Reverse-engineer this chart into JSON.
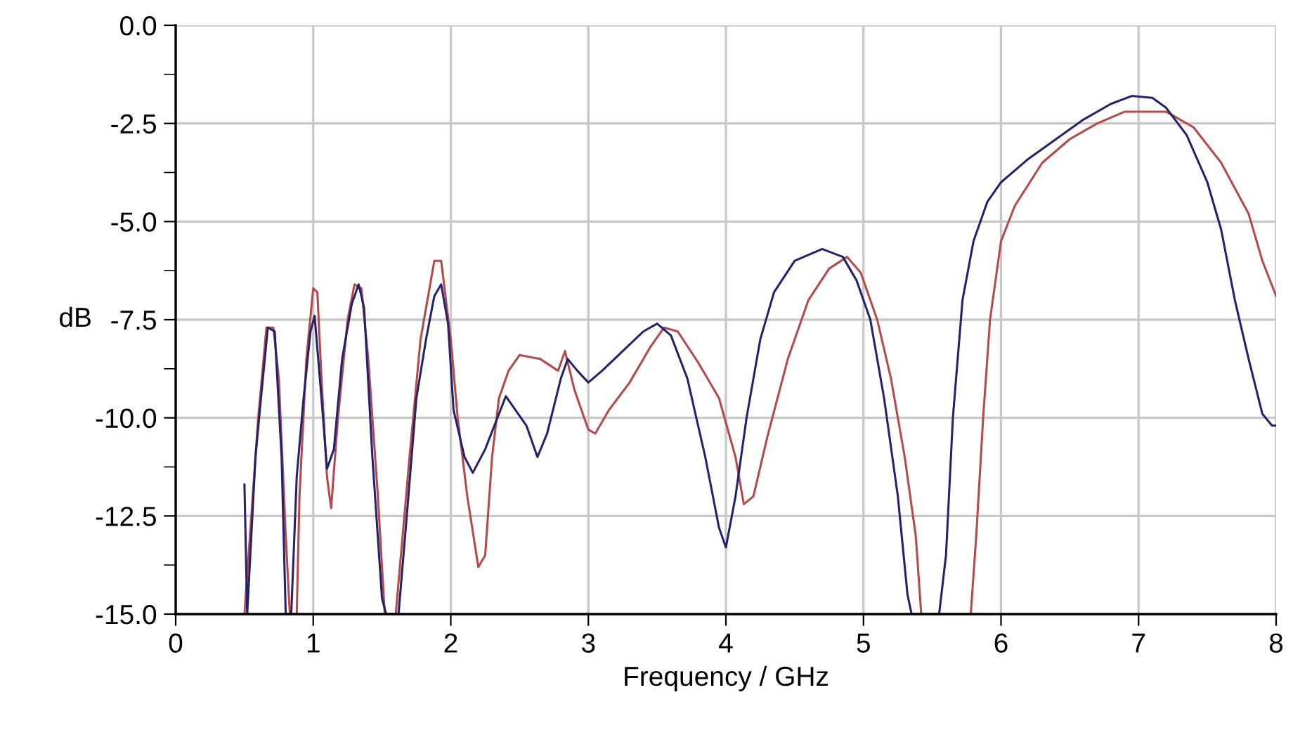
{
  "chart_data": {
    "type": "line",
    "xlabel": "Frequency / GHz",
    "ylabel": "dB",
    "xlim": [
      0,
      8
    ],
    "xticks": [
      0,
      1,
      2,
      3,
      4,
      5,
      6,
      7,
      8
    ],
    "ylim": [
      -15,
      0
    ],
    "yticks": [
      {
        "value": -15,
        "label": "-15.0"
      },
      {
        "value": -13.75,
        "label": null
      },
      {
        "value": -12.5,
        "label": "-12.5"
      },
      {
        "value": -11.25,
        "label": null
      },
      {
        "value": -10,
        "label": "-10.0"
      },
      {
        "value": -8.75,
        "label": null
      },
      {
        "value": -7.5,
        "label": "-7.5"
      },
      {
        "value": -6.25,
        "label": null
      },
      {
        "value": -5,
        "label": "-5.0"
      },
      {
        "value": -3.75,
        "label": null
      },
      {
        "value": -2.5,
        "label": "-2.5"
      },
      {
        "value": -1.25,
        "label": null
      },
      {
        "value": 0,
        "label": "0.0"
      }
    ],
    "grid": true,
    "legend": false,
    "marker": "none",
    "line_style": "solid",
    "series": [
      {
        "color": "#b54a4a",
        "x": [
          0.5,
          0.55,
          0.6,
          0.66,
          0.71,
          0.75,
          0.8,
          0.83,
          0.88,
          0.9,
          0.95,
          1.0,
          1.03,
          1.06,
          1.1,
          1.13,
          1.18,
          1.25,
          1.3,
          1.35,
          1.4,
          1.47,
          1.52,
          1.6,
          1.7,
          1.78,
          1.88,
          1.93,
          2.0,
          2.05,
          2.12,
          2.2,
          2.25,
          2.3,
          2.35,
          2.42,
          2.5,
          2.65,
          2.78,
          2.83,
          2.9,
          3.0,
          3.05,
          3.15,
          3.3,
          3.45,
          3.55,
          3.65,
          3.8,
          3.95,
          4.07,
          4.13,
          4.2,
          4.3,
          4.45,
          4.6,
          4.75,
          4.88,
          4.98,
          5.1,
          5.2,
          5.3,
          5.38,
          5.42,
          5.78,
          5.82,
          5.87,
          5.92,
          6.0,
          6.1,
          6.3,
          6.5,
          6.7,
          6.9,
          7.2,
          7.4,
          7.6,
          7.8,
          7.9,
          8.0
        ],
        "values": [
          -15,
          -12.5,
          -10,
          -7.7,
          -7.7,
          -9,
          -13,
          -15,
          -15,
          -12,
          -8.5,
          -6.7,
          -6.8,
          -9,
          -11.5,
          -12.3,
          -10,
          -7.5,
          -6.6,
          -6.7,
          -8.5,
          -12,
          -15,
          -15,
          -11,
          -8,
          -6.0,
          -6.0,
          -8,
          -10,
          -12,
          -13.8,
          -13.5,
          -11,
          -9.5,
          -8.8,
          -8.4,
          -8.5,
          -8.8,
          -8.3,
          -9.3,
          -10.3,
          -10.4,
          -9.8,
          -9.1,
          -8.2,
          -7.7,
          -7.8,
          -8.6,
          -9.5,
          -11,
          -12.2,
          -12,
          -10.5,
          -8.5,
          -7.0,
          -6.2,
          -5.9,
          -6.3,
          -7.5,
          -9,
          -11,
          -13,
          -15,
          -15,
          -13,
          -10,
          -7.5,
          -5.5,
          -4.6,
          -3.5,
          -2.9,
          -2.5,
          -2.2,
          -2.2,
          -2.6,
          -3.5,
          -4.8,
          -6.0,
          -6.9
        ]
      },
      {
        "color": "#22226e",
        "x": [
          0.5,
          0.52,
          0.58,
          0.62,
          0.67,
          0.72,
          0.77,
          0.8,
          0.84,
          0.88,
          0.93,
          0.98,
          1.01,
          1.06,
          1.1,
          1.15,
          1.21,
          1.28,
          1.33,
          1.37,
          1.43,
          1.5,
          1.53,
          1.62,
          1.68,
          1.75,
          1.82,
          1.88,
          1.93,
          1.98,
          2.02,
          2.1,
          2.16,
          2.25,
          2.4,
          2.55,
          2.63,
          2.7,
          2.8,
          2.85,
          2.92,
          3.0,
          3.1,
          3.25,
          3.4,
          3.5,
          3.6,
          3.72,
          3.85,
          3.95,
          4.0,
          4.07,
          4.15,
          4.25,
          4.35,
          4.5,
          4.7,
          4.85,
          4.95,
          5.05,
          5.15,
          5.25,
          5.32,
          5.35,
          5.55,
          5.6,
          5.65,
          5.72,
          5.8,
          5.9,
          6.0,
          6.2,
          6.4,
          6.6,
          6.8,
          6.95,
          7.1,
          7.2,
          7.35,
          7.5,
          7.6,
          7.7,
          7.8,
          7.9,
          7.97,
          8.0
        ],
        "values": [
          -11.7,
          -15,
          -11,
          -9.5,
          -7.7,
          -7.8,
          -11,
          -15,
          -15,
          -11.5,
          -9.5,
          -7.8,
          -7.4,
          -9.5,
          -11.3,
          -10.8,
          -8.5,
          -7.1,
          -6.6,
          -7.2,
          -11,
          -14.6,
          -15,
          -15,
          -12.5,
          -9.5,
          -8,
          -6.9,
          -6.6,
          -7.6,
          -9.8,
          -11,
          -11.4,
          -10.8,
          -9.45,
          -10.2,
          -11.0,
          -10.4,
          -9.0,
          -8.5,
          -8.8,
          -9.1,
          -8.8,
          -8.3,
          -7.8,
          -7.6,
          -7.9,
          -9.0,
          -11,
          -12.8,
          -13.3,
          -12,
          -10,
          -8,
          -6.8,
          -6.0,
          -5.7,
          -5.9,
          -6.5,
          -7.5,
          -9.5,
          -12,
          -14.5,
          -15,
          -15,
          -13.5,
          -10,
          -7,
          -5.5,
          -4.5,
          -4.0,
          -3.4,
          -2.9,
          -2.4,
          -2.0,
          -1.8,
          -1.85,
          -2.1,
          -2.8,
          -4.0,
          -5.2,
          -7.0,
          -8.5,
          -9.9,
          -10.2,
          -10.2
        ]
      }
    ]
  }
}
